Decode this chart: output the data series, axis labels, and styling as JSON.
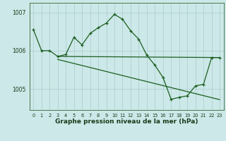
{
  "title": "Graphe pression niveau de la mer (hPa)",
  "bg_color": "#cde8e8",
  "grid_color": "#aacccc",
  "line_color": "#1a5e20",
  "xlim": [
    -0.5,
    23.5
  ],
  "ylim": [
    1004.45,
    1007.25
  ],
  "yticks": [
    1005,
    1006,
    1007
  ],
  "xticks": [
    0,
    1,
    2,
    3,
    4,
    5,
    6,
    7,
    8,
    9,
    10,
    11,
    12,
    13,
    14,
    15,
    16,
    17,
    18,
    19,
    20,
    21,
    22,
    23
  ],
  "series1_x": [
    0,
    1,
    2,
    3,
    4,
    5,
    6,
    7,
    8,
    9,
    10,
    11,
    12,
    13,
    14,
    15,
    16,
    17,
    18,
    19,
    20,
    21,
    22,
    23
  ],
  "series1_y": [
    1006.55,
    1006.0,
    1006.0,
    1005.85,
    1005.9,
    1006.35,
    1006.15,
    1006.45,
    1006.6,
    1006.72,
    1006.95,
    1006.82,
    1006.52,
    1006.3,
    1005.88,
    1005.62,
    1005.3,
    1004.73,
    1004.78,
    1004.82,
    1005.08,
    1005.12,
    1005.82,
    1005.82
  ],
  "series2_x": [
    3,
    23
  ],
  "series2_y": [
    1005.85,
    1005.82
  ],
  "series3_x": [
    3,
    23
  ],
  "series3_y": [
    1005.77,
    1004.72
  ],
  "xlabel_fontsize": 6.5,
  "ytick_fontsize": 5.5,
  "xtick_fontsize": 4.8
}
